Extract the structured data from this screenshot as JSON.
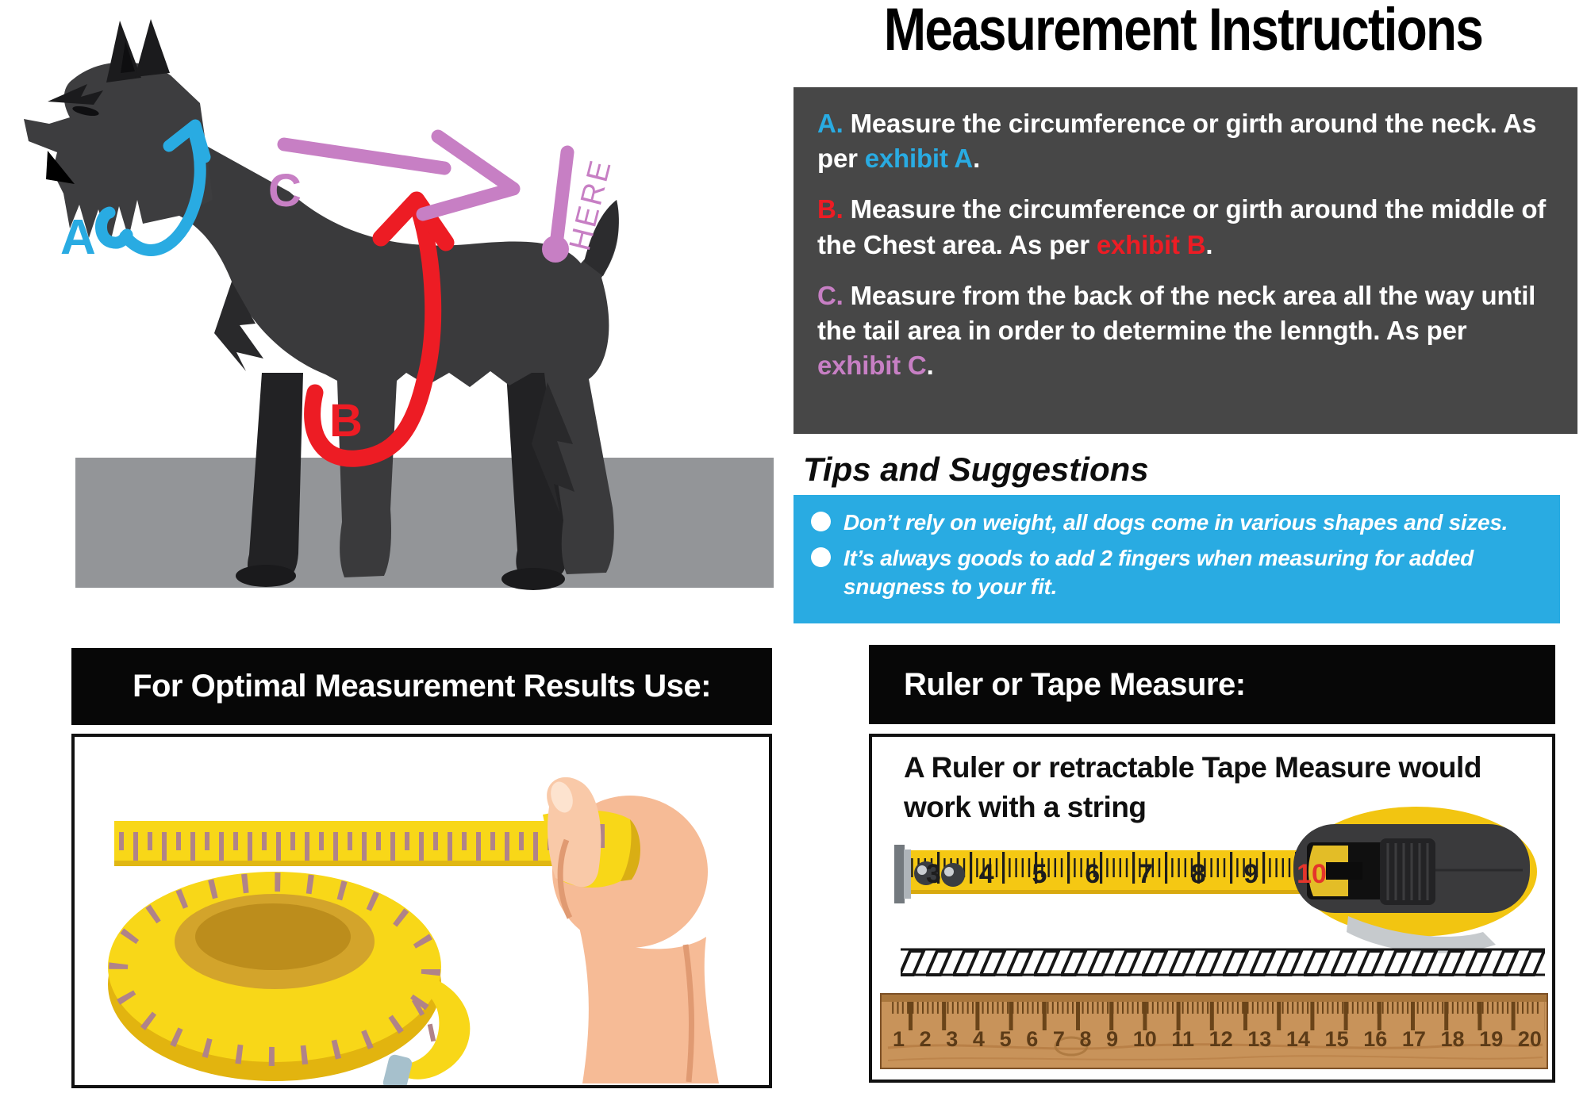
{
  "title": "Measurement Instructions",
  "colors": {
    "blue": "#29abe2",
    "red": "#ed1c24",
    "purple": "#c77fc4",
    "box_gray": "#474747"
  },
  "diagram": {
    "label_a": "A",
    "label_b": "B",
    "label_c": "C",
    "here": "HERE"
  },
  "instructions": {
    "a_prefix": "A.",
    "a_text": " Measure the circumference or girth around the neck. As per ",
    "a_link": "exhibit A",
    "a_end": ".",
    "b_prefix": "B.",
    "b_text": " Measure the circumference or girth around the middle of the Chest area. As per ",
    "b_link": "exhibit B",
    "b_end": ".",
    "c_prefix": "C.",
    "c_text": " Measure from the back of the neck area all the way until the tail area in order to determine the lenngth. As per ",
    "c_link": "exhibit C",
    "c_end": "."
  },
  "tips": {
    "heading": "Tips and Suggestions",
    "bullet1": "Don’t rely on weight, all dogs come in various shapes and sizes.",
    "bullet2": "It’s always goods to add 2 fingers when measuring for added snugness to your fit."
  },
  "left_panel": {
    "header": "For Optimal Measurement Results Use:"
  },
  "right_panel": {
    "header": "Ruler or Tape Measure:",
    "body": "A Ruler or retractable Tape Measure would work with a string",
    "tape_numbers": [
      "3",
      "4",
      "5",
      "6",
      "7",
      "8",
      "9",
      "10"
    ],
    "ruler_numbers": [
      "1",
      "2",
      "3",
      "4",
      "5",
      "6",
      "7",
      "8",
      "9",
      "10",
      "11",
      "12",
      "13",
      "14",
      "15",
      "16",
      "17",
      "18",
      "19",
      "20"
    ]
  }
}
